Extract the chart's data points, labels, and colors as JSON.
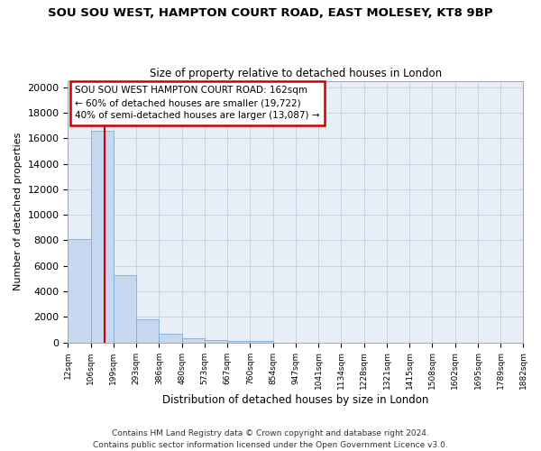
{
  "title_line1": "SOU SOU WEST, HAMPTON COURT ROAD, EAST MOLESEY, KT8 9BP",
  "title_line2": "Size of property relative to detached houses in London",
  "xlabel": "Distribution of detached houses by size in London",
  "ylabel": "Number of detached properties",
  "footer_line1": "Contains HM Land Registry data © Crown copyright and database right 2024.",
  "footer_line2": "Contains public sector information licensed under the Open Government Licence v3.0.",
  "property_label": "SOU SOU WEST HAMPTON COURT ROAD: 162sqm",
  "annotation_line1": "← 60% of detached houses are smaller (19,722)",
  "annotation_line2": "40% of semi-detached houses are larger (13,087) →",
  "red_line_x": 162,
  "bar_color": "#c5d8f0",
  "bar_edge_color": "#7fafd4",
  "red_line_color": "#cc0000",
  "annotation_box_edge": "#cc0000",
  "annotation_box_face": "#ffffff",
  "grid_color": "#c8d4e4",
  "bg_color": "#e8eef8",
  "bin_edges": [
    12,
    106,
    199,
    293,
    386,
    480,
    573,
    667,
    760,
    854,
    947,
    1041,
    1134,
    1228,
    1321,
    1415,
    1508,
    1602,
    1695,
    1789,
    1882
  ],
  "bin_heights": [
    8100,
    16600,
    5300,
    1800,
    650,
    330,
    200,
    140,
    120,
    0,
    0,
    0,
    0,
    0,
    0,
    0,
    0,
    0,
    0,
    0
  ],
  "ylim": [
    0,
    20500
  ],
  "yticks": [
    0,
    2000,
    4000,
    6000,
    8000,
    10000,
    12000,
    14000,
    16000,
    18000,
    20000
  ]
}
